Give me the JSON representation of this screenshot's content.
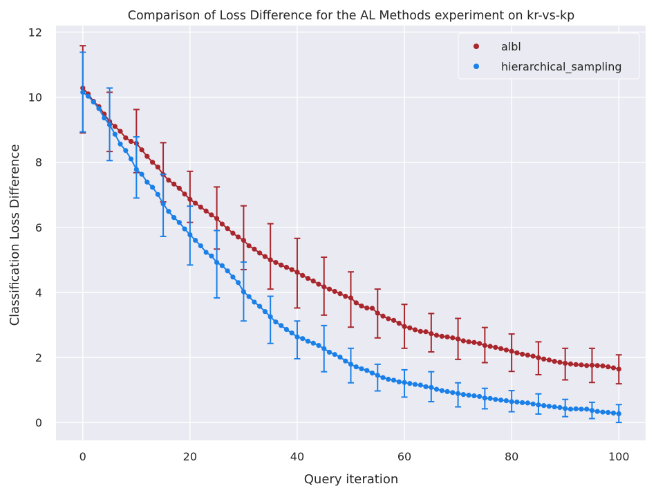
{
  "chart_data": {
    "type": "scatter",
    "title": "Comparison of Loss Difference for the AL Methods experiment on kr-vs-kp",
    "xlabel": "Query iteration",
    "ylabel": "Classification Loss Difference",
    "xlim": [
      -5,
      105
    ],
    "ylim": [
      -0.55,
      12.2
    ],
    "xticks": [
      0,
      20,
      40,
      60,
      80,
      100
    ],
    "yticks": [
      0,
      2,
      4,
      6,
      8,
      10,
      12
    ],
    "grid": true,
    "legend_position": "top-right",
    "series": [
      {
        "name": "albl",
        "color": "#a8262c",
        "x": [
          0,
          1,
          2,
          3,
          4,
          5,
          6,
          7,
          8,
          9,
          10,
          11,
          12,
          13,
          14,
          15,
          16,
          17,
          18,
          19,
          20,
          21,
          22,
          23,
          24,
          25,
          26,
          27,
          28,
          29,
          30,
          31,
          32,
          33,
          34,
          35,
          36,
          37,
          38,
          39,
          40,
          41,
          42,
          43,
          44,
          45,
          46,
          47,
          48,
          49,
          50,
          51,
          52,
          53,
          54,
          55,
          56,
          57,
          58,
          59,
          60,
          61,
          62,
          63,
          64,
          65,
          66,
          67,
          68,
          69,
          70,
          71,
          72,
          73,
          74,
          75,
          76,
          77,
          78,
          79,
          80,
          81,
          82,
          83,
          84,
          85,
          86,
          87,
          88,
          89,
          90,
          91,
          92,
          93,
          94,
          95,
          96,
          97,
          98,
          99,
          100
        ],
        "y": [
          10.28,
          10.1,
          9.87,
          9.71,
          9.48,
          9.25,
          9.1,
          8.95,
          8.75,
          8.64,
          8.58,
          8.38,
          8.18,
          8.0,
          7.85,
          7.62,
          7.45,
          7.33,
          7.2,
          7.02,
          6.86,
          6.74,
          6.62,
          6.5,
          6.38,
          6.27,
          6.1,
          5.96,
          5.82,
          5.7,
          5.6,
          5.43,
          5.33,
          5.21,
          5.1,
          5.0,
          4.92,
          4.84,
          4.77,
          4.7,
          4.62,
          4.52,
          4.43,
          4.35,
          4.25,
          4.17,
          4.1,
          4.03,
          3.96,
          3.88,
          3.83,
          3.68,
          3.58,
          3.52,
          3.51,
          3.36,
          3.27,
          3.19,
          3.14,
          3.05,
          2.95,
          2.91,
          2.85,
          2.8,
          2.79,
          2.73,
          2.68,
          2.65,
          2.63,
          2.6,
          2.57,
          2.51,
          2.48,
          2.46,
          2.43,
          2.37,
          2.34,
          2.31,
          2.27,
          2.23,
          2.19,
          2.14,
          2.1,
          2.07,
          2.04,
          1.99,
          1.95,
          1.92,
          1.88,
          1.85,
          1.82,
          1.8,
          1.78,
          1.77,
          1.75,
          1.76,
          1.75,
          1.74,
          1.71,
          1.68,
          1.64
        ],
        "error_x": [
          0,
          5,
          10,
          15,
          20,
          25,
          30,
          35,
          40,
          45,
          50,
          55,
          60,
          65,
          70,
          75,
          80,
          85,
          90,
          95,
          100
        ],
        "error_low": [
          8.9,
          8.33,
          7.68,
          6.78,
          6.15,
          5.33,
          4.7,
          4.1,
          3.52,
          3.3,
          2.93,
          2.6,
          2.28,
          2.17,
          1.94,
          1.84,
          1.57,
          1.47,
          1.31,
          1.23,
          1.19
        ],
        "error_high": [
          11.58,
          10.15,
          9.62,
          8.6,
          7.72,
          7.24,
          6.66,
          6.11,
          5.66,
          5.08,
          4.63,
          4.1,
          3.63,
          3.35,
          3.2,
          2.92,
          2.72,
          2.48,
          2.28,
          2.28,
          2.08
        ]
      },
      {
        "name": "hierarchical_sampling",
        "color": "#1a80e8",
        "x": [
          0,
          1,
          2,
          3,
          4,
          5,
          6,
          7,
          8,
          9,
          10,
          11,
          12,
          13,
          14,
          15,
          16,
          17,
          18,
          19,
          20,
          21,
          22,
          23,
          24,
          25,
          26,
          27,
          28,
          29,
          30,
          31,
          32,
          33,
          34,
          35,
          36,
          37,
          38,
          39,
          40,
          41,
          42,
          43,
          44,
          45,
          46,
          47,
          48,
          49,
          50,
          51,
          52,
          53,
          54,
          55,
          56,
          57,
          58,
          59,
          60,
          61,
          62,
          63,
          64,
          65,
          66,
          67,
          68,
          69,
          70,
          71,
          72,
          73,
          74,
          75,
          76,
          77,
          78,
          79,
          80,
          81,
          82,
          83,
          84,
          85,
          86,
          87,
          88,
          89,
          90,
          91,
          92,
          93,
          94,
          95,
          96,
          97,
          98,
          99,
          100
        ],
        "y": [
          10.15,
          10.03,
          9.85,
          9.65,
          9.36,
          9.15,
          8.86,
          8.56,
          8.36,
          8.1,
          7.78,
          7.63,
          7.39,
          7.23,
          7.01,
          6.72,
          6.49,
          6.3,
          6.15,
          5.95,
          5.77,
          5.6,
          5.43,
          5.23,
          5.12,
          4.92,
          4.82,
          4.66,
          4.47,
          4.3,
          4.02,
          3.87,
          3.7,
          3.57,
          3.41,
          3.25,
          3.09,
          2.98,
          2.86,
          2.75,
          2.63,
          2.58,
          2.5,
          2.44,
          2.37,
          2.27,
          2.16,
          2.09,
          2.01,
          1.89,
          1.79,
          1.71,
          1.65,
          1.6,
          1.52,
          1.45,
          1.38,
          1.33,
          1.3,
          1.25,
          1.23,
          1.2,
          1.17,
          1.15,
          1.1,
          1.08,
          1.02,
          0.98,
          0.95,
          0.92,
          0.89,
          0.86,
          0.84,
          0.82,
          0.8,
          0.75,
          0.74,
          0.71,
          0.69,
          0.67,
          0.64,
          0.63,
          0.61,
          0.6,
          0.57,
          0.54,
          0.52,
          0.5,
          0.48,
          0.46,
          0.43,
          0.41,
          0.42,
          0.41,
          0.41,
          0.37,
          0.34,
          0.32,
          0.31,
          0.29,
          0.27
        ],
        "error_x": [
          0,
          5,
          10,
          15,
          20,
          25,
          30,
          35,
          40,
          45,
          50,
          55,
          60,
          65,
          70,
          75,
          80,
          85,
          90,
          95,
          100
        ],
        "error_low": [
          8.93,
          8.05,
          6.9,
          5.72,
          4.84,
          3.83,
          3.12,
          2.43,
          1.96,
          1.56,
          1.22,
          0.97,
          0.78,
          0.64,
          0.48,
          0.42,
          0.33,
          0.26,
          0.18,
          0.12,
          0.0
        ],
        "error_high": [
          11.38,
          10.28,
          8.78,
          7.63,
          6.65,
          5.9,
          4.93,
          3.88,
          3.12,
          2.98,
          2.28,
          1.79,
          1.62,
          1.56,
          1.22,
          1.05,
          0.98,
          0.88,
          0.71,
          0.62,
          0.55
        ]
      }
    ]
  }
}
